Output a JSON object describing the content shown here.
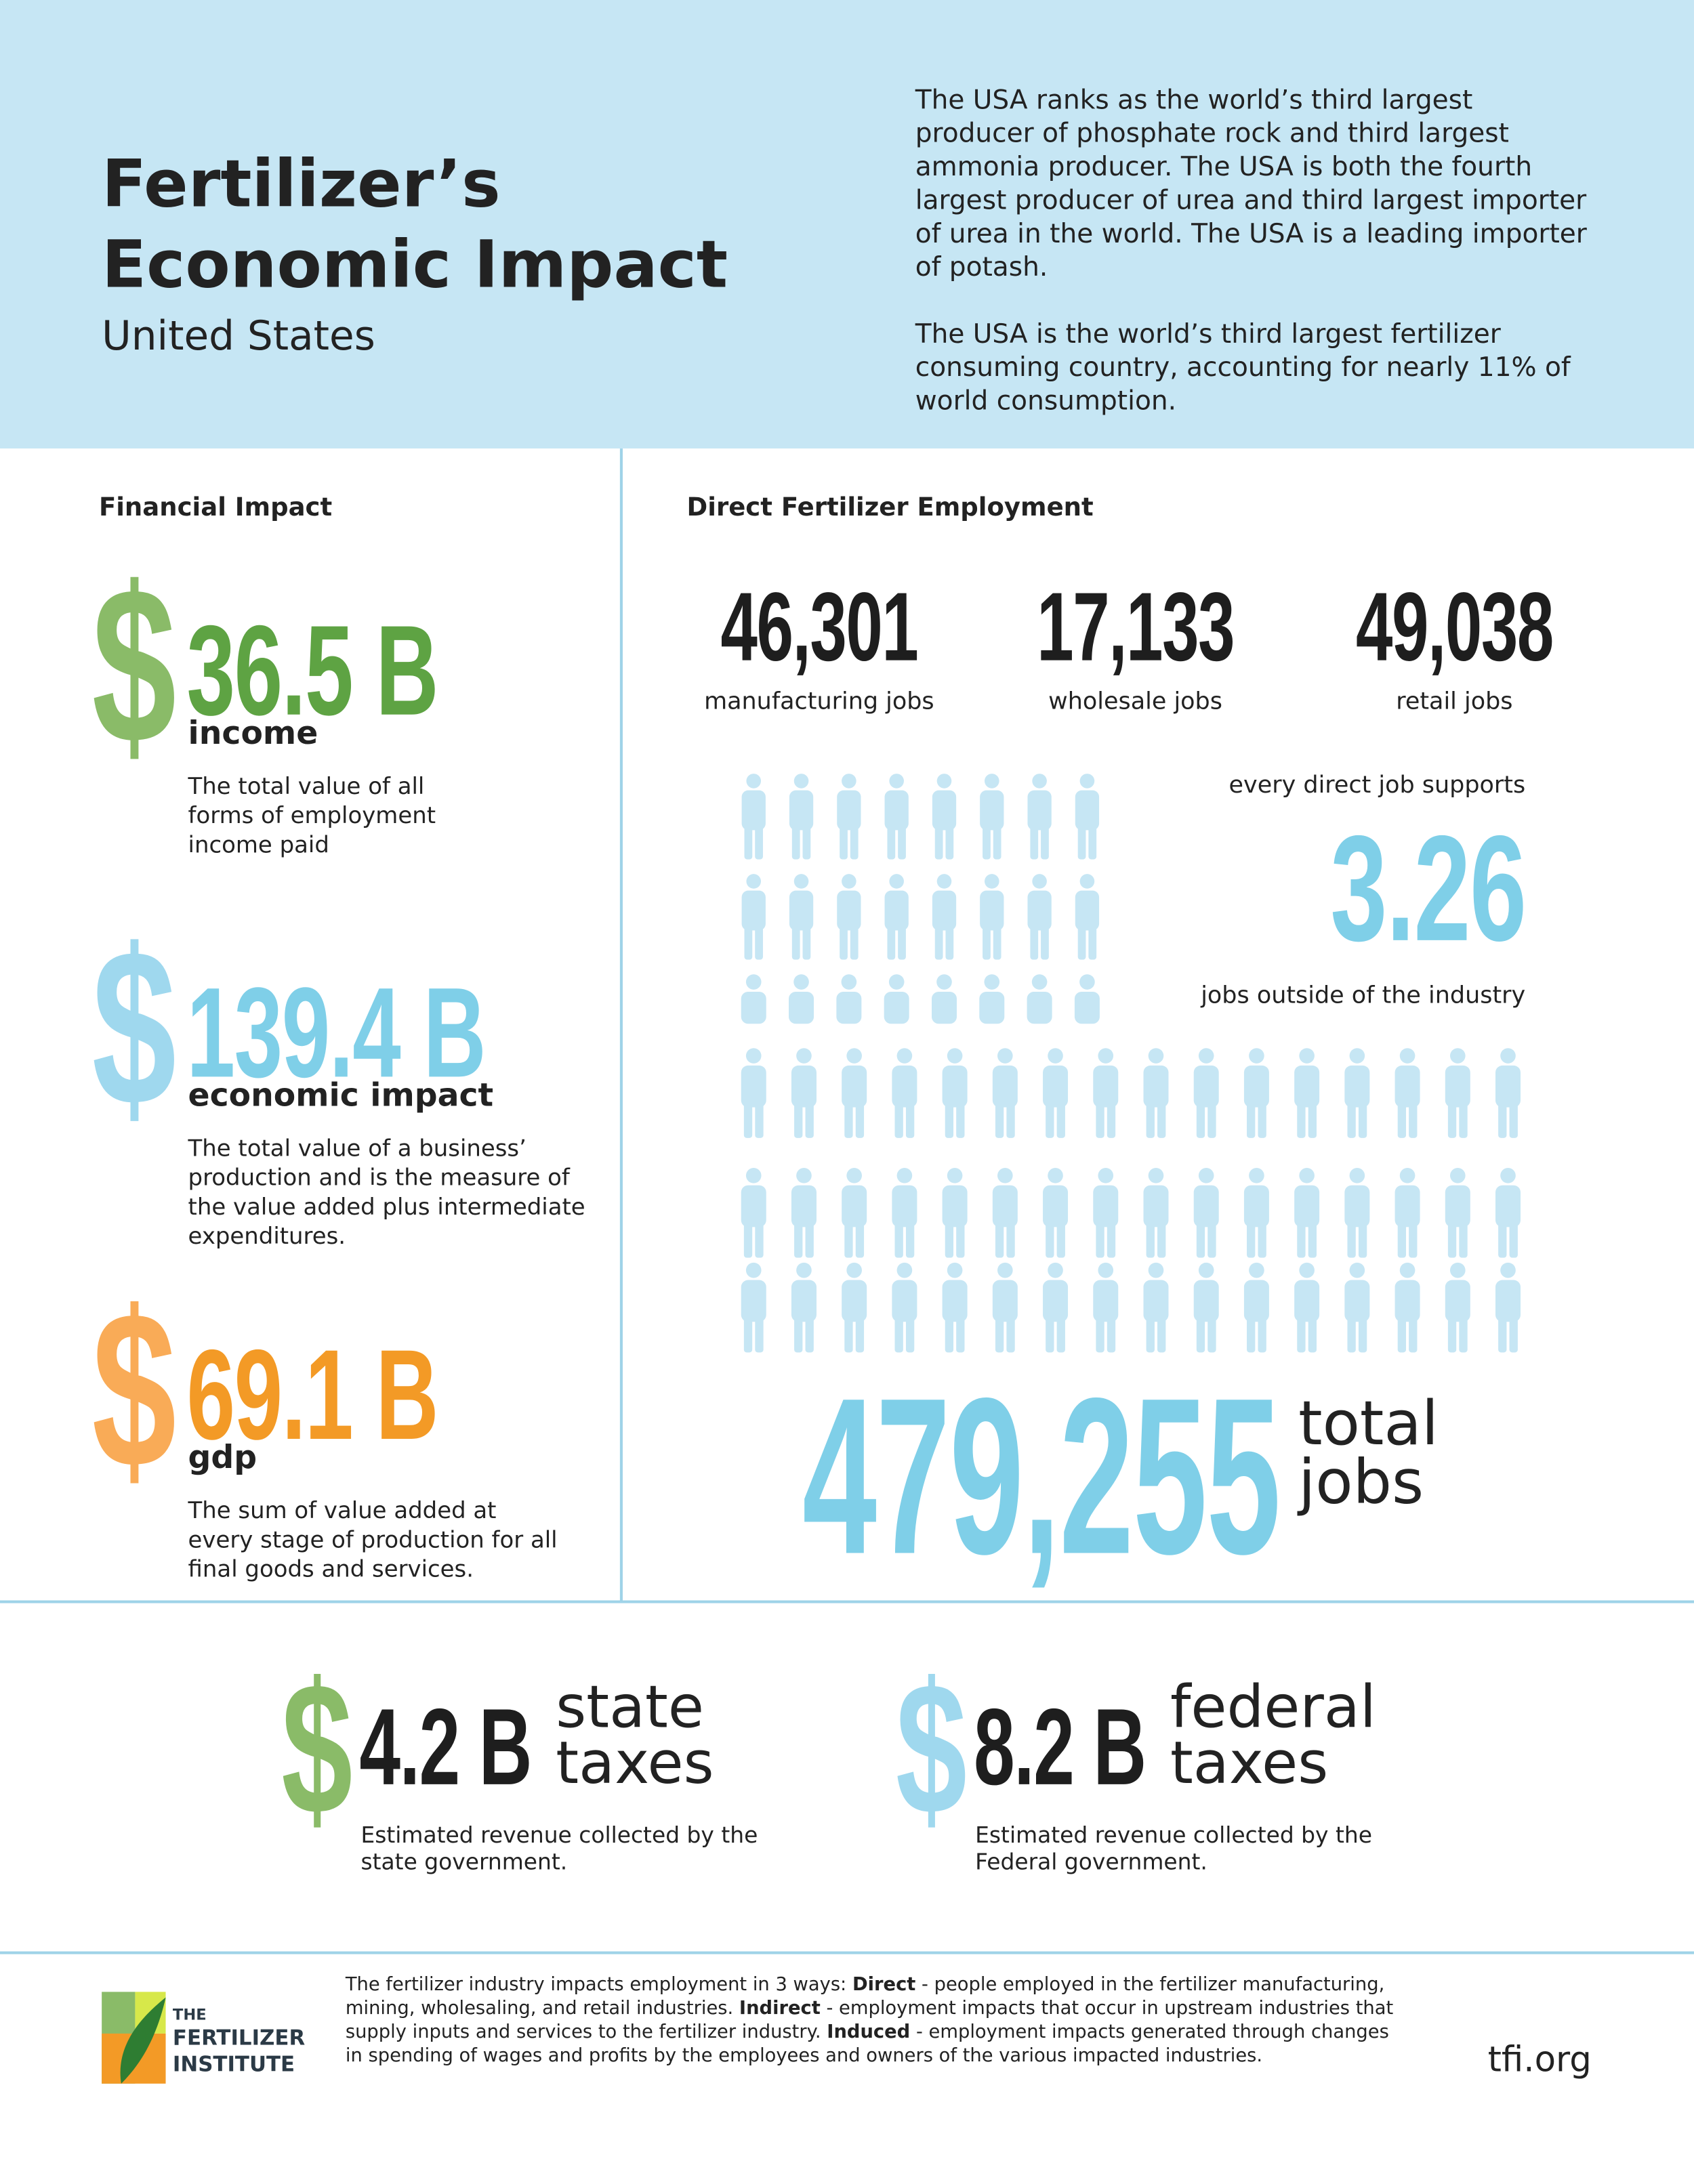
{
  "header": {
    "title_lines": [
      "Fertilizer’s",
      "Economic Impact"
    ],
    "subtitle": "United States",
    "paragraphs": [
      "The USA ranks as the world’s third largest producer of phosphate rock and third largest ammonia producer. The USA is both the fourth largest producer of urea and third largest importer of urea in the world. The USA is a leading importer of potash.",
      "The USA is the world’s third largest fertilizer consuming country, accounting for nearly 11% of world consumption."
    ]
  },
  "financial": {
    "heading": "Financial Impact",
    "items": [
      {
        "symbol": "$",
        "amount": "36.5 B",
        "label": "income",
        "description": "The total value of all forms of employment income paid",
        "symbol_color": "#8abb68",
        "amount_color": "#5ea343"
      },
      {
        "symbol": "$",
        "amount": "139.4 B",
        "label": "economic impact",
        "description": "The total value of a business’ production and is the measure of the value added plus intermediate expenditures.",
        "symbol_color": "#9fd8ee",
        "amount_color": "#7fcfe8"
      },
      {
        "symbol": "$",
        "amount": "69.1 B",
        "label": "gdp",
        "description": "The sum of value added at every stage of production for all final goods and services.",
        "symbol_color": "#f9ab57",
        "amount_color": "#f39a26"
      }
    ]
  },
  "employment": {
    "heading": "Direct Fertilizer Employment",
    "jobs": [
      {
        "count": "46,301",
        "label": "manufacturing jobs"
      },
      {
        "count": "17,133",
        "label": "wholesale jobs"
      },
      {
        "count": "49,038",
        "label": "retail jobs"
      }
    ],
    "multiplier": {
      "before": "every direct job supports",
      "value": "3.26",
      "after": "jobs outside of the industry"
    },
    "total": {
      "count": "479,255",
      "label_lines": [
        "total",
        "jobs"
      ]
    }
  },
  "taxes": [
    {
      "symbol": "$",
      "amount": "4.2 B",
      "label_lines": [
        "state",
        "taxes"
      ],
      "description": "Estimated revenue collected by the state government.",
      "symbol_color": "#8abb68"
    },
    {
      "symbol": "$",
      "amount": "8.2 B",
      "label_lines": [
        "federal",
        "taxes"
      ],
      "description": "Estimated revenue collected by the Federal government.",
      "symbol_color": "#9fd8ee"
    }
  ],
  "footer": {
    "logo_lines": [
      "THE",
      "FERTILIZER",
      "INSTITUTE"
    ],
    "note": [
      {
        "text": "The fertilizer industry impacts employment in 3 ways: "
      },
      {
        "text": "Direct",
        "bold": true
      },
      {
        "text": " - people employed in the fertilizer manufacturing, mining, wholesaling, and retail industries. "
      },
      {
        "text": "Indirect",
        "bold": true
      },
      {
        "text": " - employment impacts that occur in upstream industries that supply inputs and services to the fertilizer industry. "
      },
      {
        "text": "Induced",
        "bold": true
      },
      {
        "text": " - employment impacts generated through changes in spending of wages and profits by the employees and owners of the various impacted industries."
      }
    ],
    "url": "tfi.org"
  }
}
